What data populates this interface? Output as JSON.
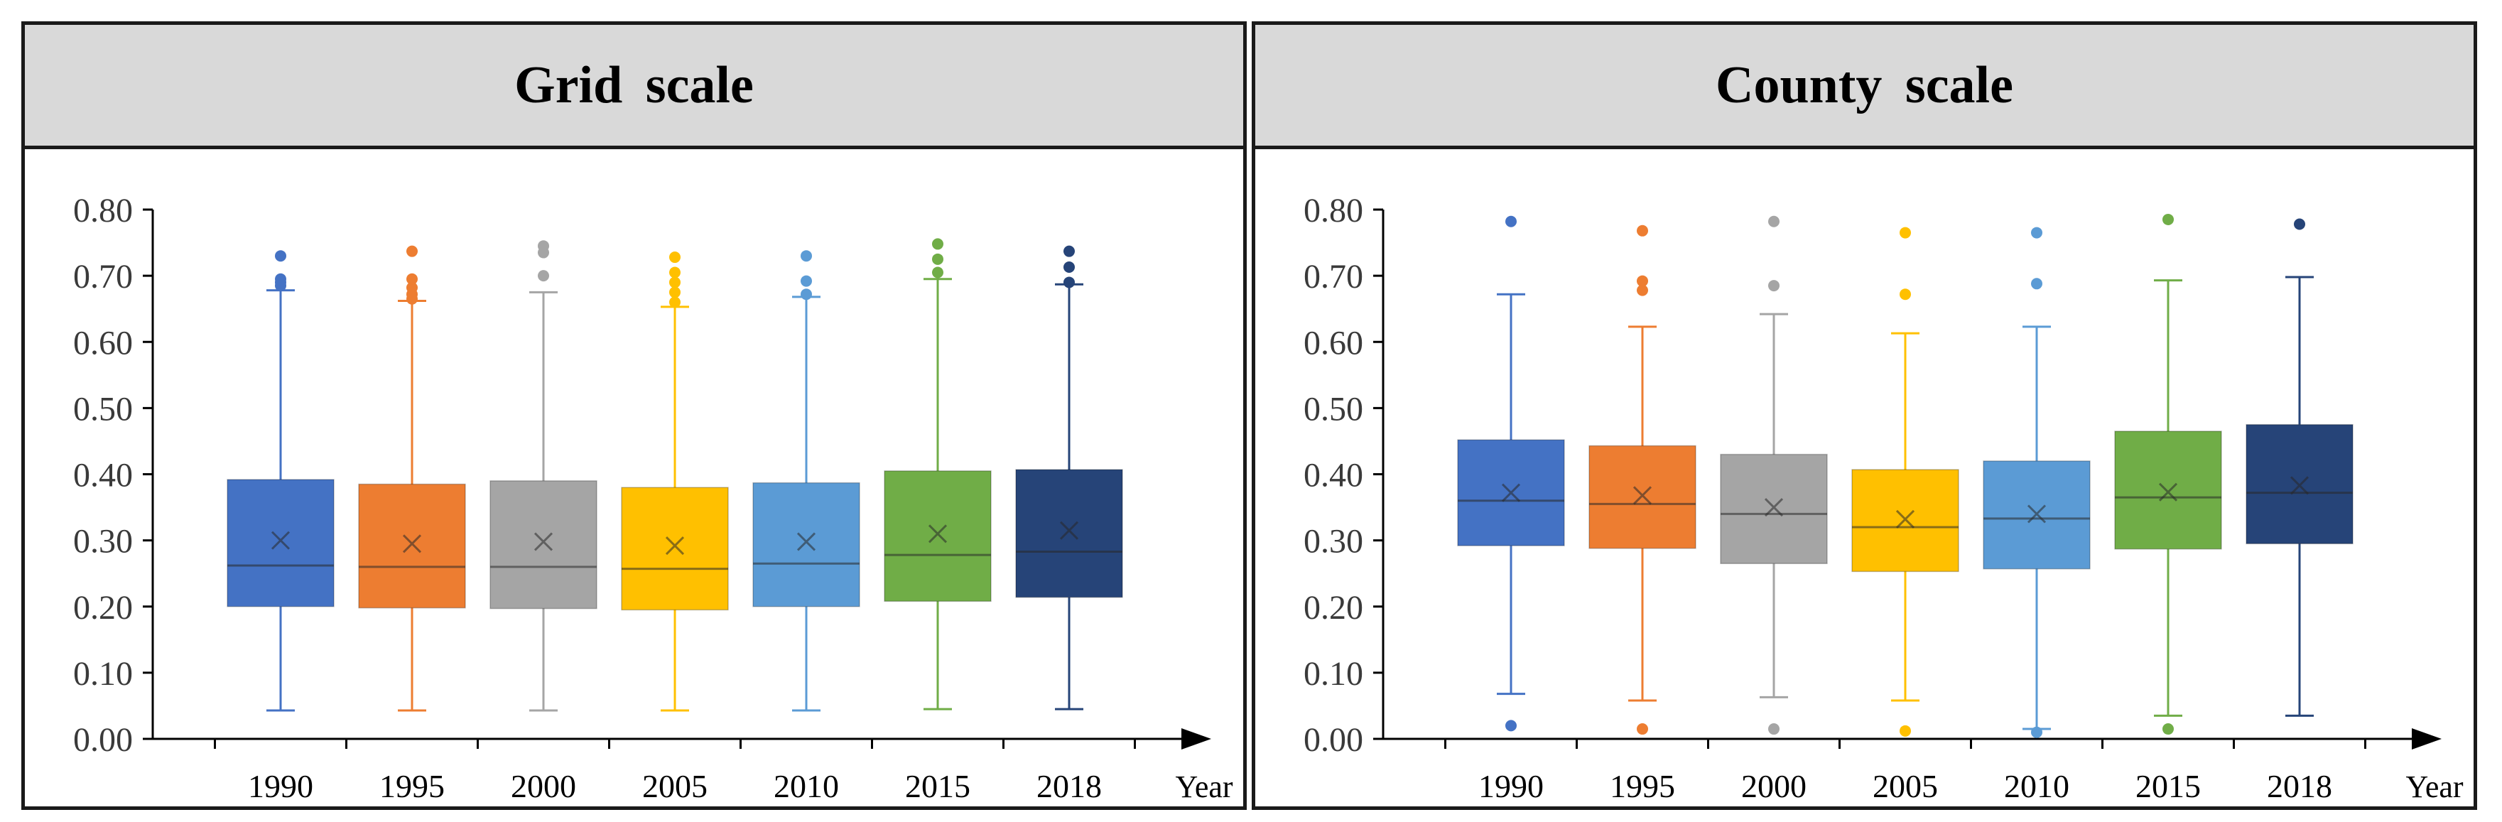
{
  "colors": {
    "1990": "#4472c4",
    "1995": "#ed7d31",
    "2000": "#a5a5a5",
    "2005": "#ffc000",
    "2010": "#5b9bd5",
    "2015": "#70ad47",
    "2018": "#264478"
  },
  "chart_data": [
    {
      "type": "box",
      "title": "Grid scale",
      "xlabel": "Year",
      "ylabel": "",
      "ylim": [
        0,
        0.8
      ],
      "yticks": [
        "0.00",
        "0.10",
        "0.20",
        "0.30",
        "0.40",
        "0.50",
        "0.60",
        "0.70",
        "0.80"
      ],
      "categories": [
        "1990",
        "1995",
        "2000",
        "2005",
        "2010",
        "2015",
        "2018"
      ],
      "boxes": [
        {
          "min": 0.043,
          "q1": 0.2,
          "median": 0.262,
          "q3": 0.392,
          "max": 0.678,
          "mean": 0.3,
          "outliers": [
            0.685,
            0.69,
            0.695,
            0.73
          ]
        },
        {
          "min": 0.043,
          "q1": 0.198,
          "median": 0.26,
          "q3": 0.385,
          "max": 0.662,
          "mean": 0.295,
          "outliers": [
            0.665,
            0.672,
            0.682,
            0.695,
            0.737
          ]
        },
        {
          "min": 0.043,
          "q1": 0.197,
          "median": 0.26,
          "q3": 0.39,
          "max": 0.675,
          "mean": 0.298,
          "outliers": [
            0.7,
            0.735,
            0.745
          ]
        },
        {
          "min": 0.043,
          "q1": 0.195,
          "median": 0.257,
          "q3": 0.38,
          "max": 0.653,
          "mean": 0.292,
          "outliers": [
            0.66,
            0.675,
            0.69,
            0.705,
            0.728
          ]
        },
        {
          "min": 0.043,
          "q1": 0.2,
          "median": 0.265,
          "q3": 0.387,
          "max": 0.668,
          "mean": 0.298,
          "outliers": [
            0.672,
            0.692,
            0.73
          ]
        },
        {
          "min": 0.045,
          "q1": 0.208,
          "median": 0.278,
          "q3": 0.405,
          "max": 0.695,
          "mean": 0.31,
          "outliers": [
            0.705,
            0.725,
            0.748
          ]
        },
        {
          "min": 0.045,
          "q1": 0.214,
          "median": 0.283,
          "q3": 0.407,
          "max": 0.687,
          "mean": 0.315,
          "outliers": [
            0.69,
            0.713,
            0.737
          ]
        }
      ]
    },
    {
      "type": "box",
      "title": "County scale",
      "xlabel": "Year",
      "ylabel": "",
      "ylim": [
        0,
        0.8
      ],
      "yticks": [
        "0.00",
        "0.10",
        "0.20",
        "0.30",
        "0.40",
        "0.50",
        "0.60",
        "0.70",
        "0.80"
      ],
      "categories": [
        "1990",
        "1995",
        "2000",
        "2005",
        "2010",
        "2015",
        "2018"
      ],
      "boxes": [
        {
          "min": 0.068,
          "q1": 0.292,
          "median": 0.36,
          "q3": 0.452,
          "max": 0.672,
          "mean": 0.372,
          "outliers": [
            0.02,
            0.782
          ]
        },
        {
          "min": 0.058,
          "q1": 0.288,
          "median": 0.355,
          "q3": 0.443,
          "max": 0.623,
          "mean": 0.368,
          "outliers": [
            0.015,
            0.678,
            0.692,
            0.768
          ]
        },
        {
          "min": 0.063,
          "q1": 0.265,
          "median": 0.34,
          "q3": 0.43,
          "max": 0.642,
          "mean": 0.35,
          "outliers": [
            0.015,
            0.685,
            0.782
          ]
        },
        {
          "min": 0.058,
          "q1": 0.253,
          "median": 0.32,
          "q3": 0.407,
          "max": 0.613,
          "mean": 0.332,
          "outliers": [
            0.012,
            0.672,
            0.765
          ]
        },
        {
          "min": 0.015,
          "q1": 0.257,
          "median": 0.333,
          "q3": 0.42,
          "max": 0.623,
          "mean": 0.34,
          "outliers": [
            0.01,
            0.688,
            0.765
          ]
        },
        {
          "min": 0.035,
          "q1": 0.287,
          "median": 0.365,
          "q3": 0.465,
          "max": 0.693,
          "mean": 0.373,
          "outliers": [
            0.015,
            0.785
          ]
        },
        {
          "min": 0.035,
          "q1": 0.295,
          "median": 0.372,
          "q3": 0.475,
          "max": 0.698,
          "mean": 0.383,
          "outliers": [
            0.778
          ]
        }
      ]
    }
  ]
}
